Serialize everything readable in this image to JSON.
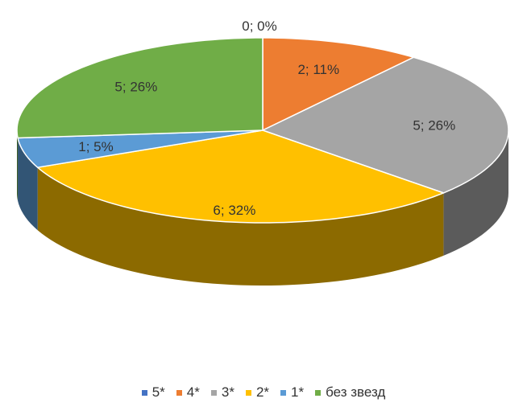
{
  "chart_data": {
    "type": "pie",
    "title": "",
    "three_d": true,
    "legend_position": "bottom",
    "categories": [
      "5*",
      "4*",
      "3*",
      "2*",
      "1*",
      "без звезд"
    ],
    "values": [
      0,
      2,
      5,
      6,
      1,
      5
    ],
    "percents": [
      0,
      11,
      26,
      32,
      5,
      26
    ],
    "colors": [
      "#4472C4",
      "#ED7D31",
      "#A5A5A5",
      "#FFC000",
      "#5B9BD5",
      "#70AD47"
    ],
    "data_labels": [
      "0; 0%",
      "2; 11%",
      "5; 26%",
      "6; 32%",
      "1; 5%",
      "5; 26%"
    ]
  }
}
